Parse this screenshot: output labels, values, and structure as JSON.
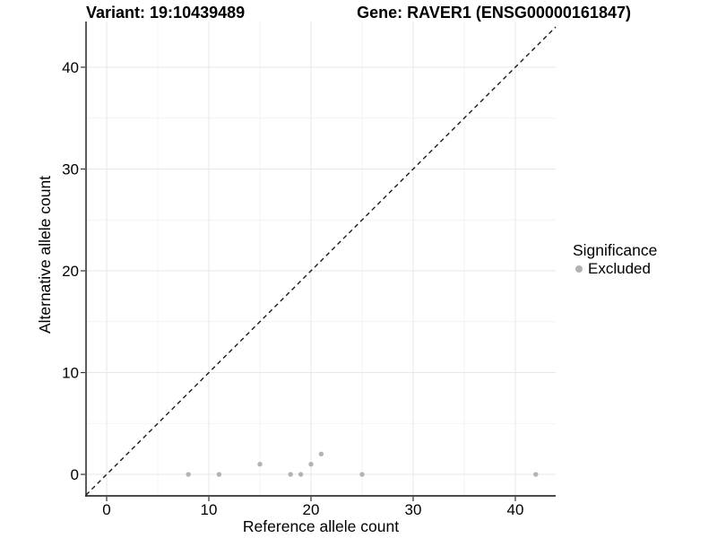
{
  "chart_data": {
    "type": "scatter",
    "title_parts": [
      "Variant: 19:10439489",
      "Gene: RAVER1 (ENSG00000161847)"
    ],
    "xlabel": "Reference allele count",
    "ylabel": "Alternative allele count",
    "xlim": [
      -2.02,
      43.95
    ],
    "ylim": [
      -2.11,
      44.49
    ],
    "xticks": [
      0,
      10,
      20,
      30,
      40
    ],
    "yticks": [
      0,
      10,
      20,
      30,
      40
    ],
    "xticks_minor": [
      5,
      15,
      25,
      35
    ],
    "yticks_minor": [
      5,
      15,
      25,
      35
    ],
    "grid": true,
    "identity_line": {
      "equation": "y = x",
      "style": "dashed",
      "color": "#1a1a1a"
    },
    "series": [
      {
        "name": "Excluded",
        "color": "#b3b3b3",
        "points": [
          {
            "x": 8,
            "y": 0
          },
          {
            "x": 11,
            "y": 0
          },
          {
            "x": 15,
            "y": 1
          },
          {
            "x": 18,
            "y": 0
          },
          {
            "x": 19,
            "y": 0
          },
          {
            "x": 20,
            "y": 1
          },
          {
            "x": 21,
            "y": 2
          },
          {
            "x": 25,
            "y": 0
          },
          {
            "x": 42,
            "y": 0
          }
        ]
      }
    ],
    "legend": {
      "title": "Significance",
      "position": "right",
      "items": [
        {
          "label": "Excluded",
          "color": "#b3b3b3"
        }
      ]
    },
    "style": {
      "background": "#ffffff",
      "point_color": "#b3b3b3",
      "grid_major": "#e7e7e7",
      "grid_minor": "#f3f3f3",
      "axis_line": "#333333",
      "tick_color": "#333333",
      "text_color": "#000000"
    }
  }
}
